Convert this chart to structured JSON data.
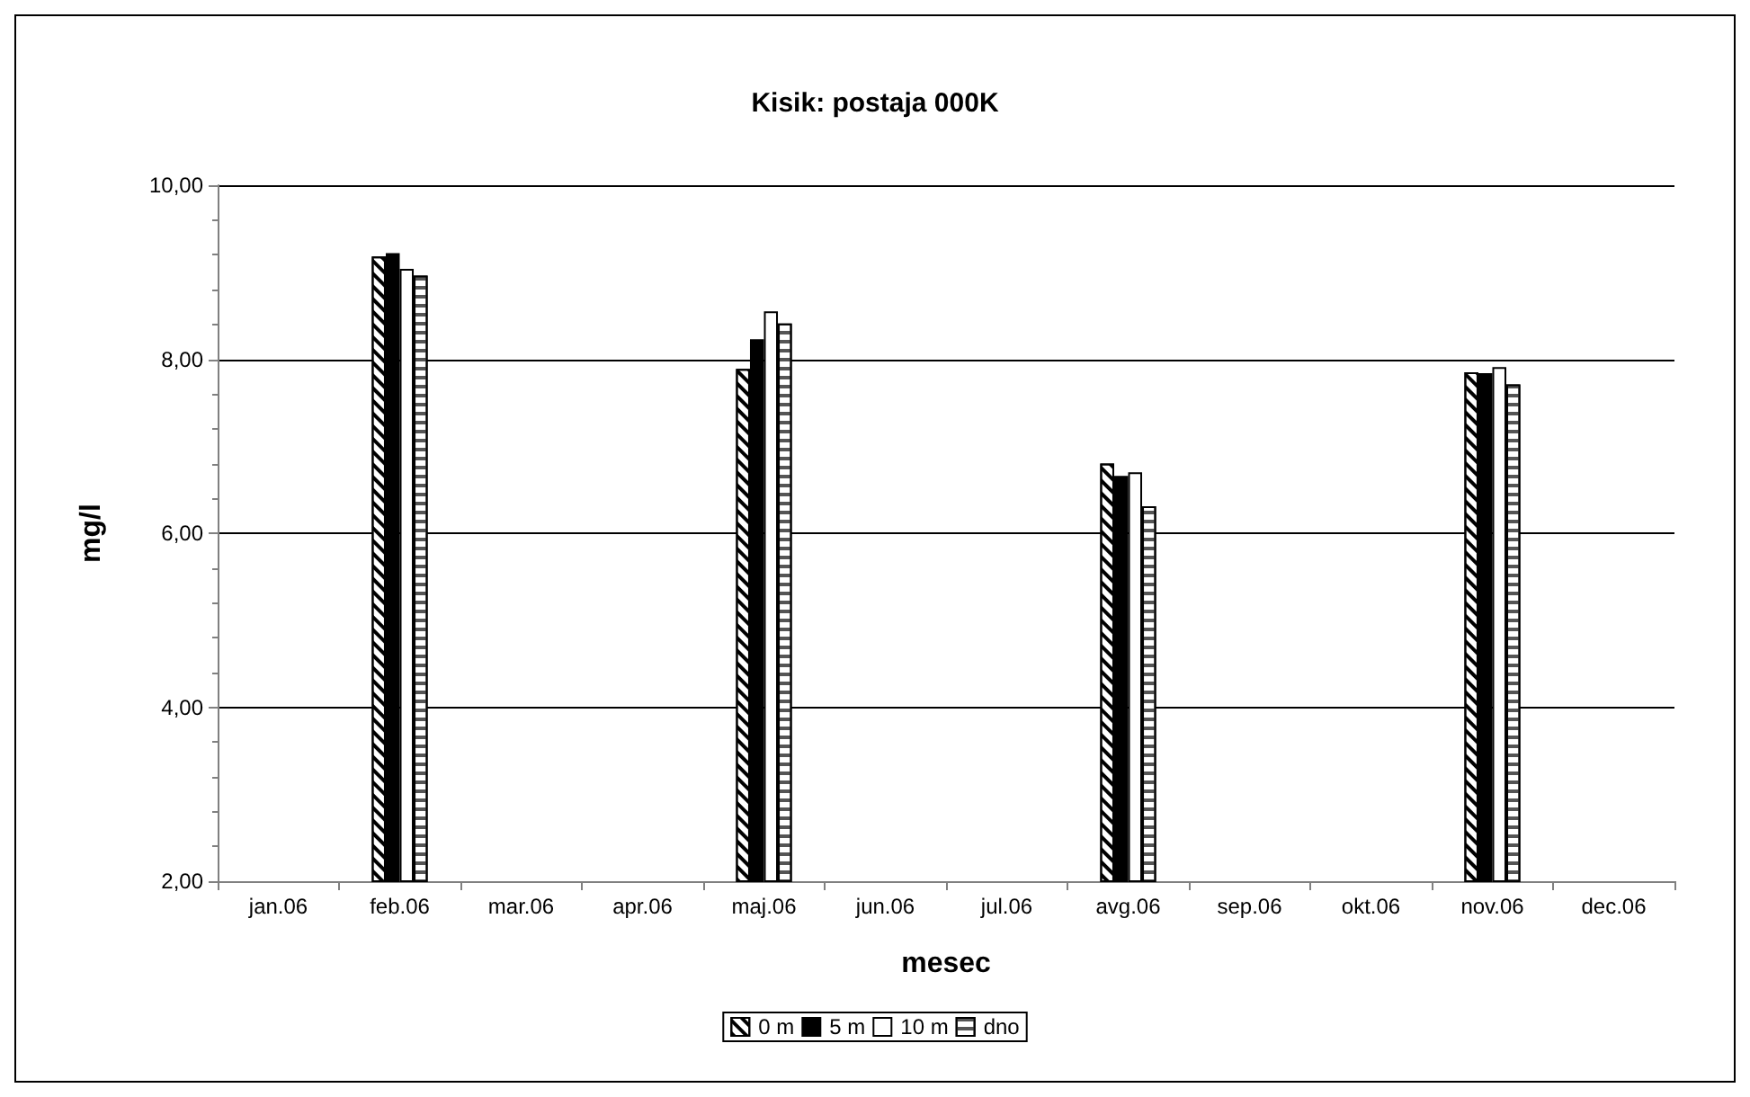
{
  "chart_data": {
    "type": "bar",
    "title": "Kisik: postaja 000K",
    "xlabel": "mesec",
    "ylabel": "mg/l",
    "categories": [
      "jan.06",
      "feb.06",
      "mar.06",
      "apr.06",
      "maj.06",
      "jun.06",
      "jul.06",
      "avg.06",
      "sep.06",
      "okt.06",
      "nov.06",
      "dec.06"
    ],
    "series": [
      {
        "name": "0 m",
        "color": "#ffffff",
        "values": [
          null,
          9.18,
          null,
          null,
          7.89,
          null,
          null,
          6.8,
          null,
          null,
          7.85,
          null
        ]
      },
      {
        "name": "5 m",
        "color": "#000000",
        "values": [
          null,
          9.22,
          null,
          null,
          8.23,
          null,
          null,
          6.66,
          null,
          null,
          7.84,
          null
        ]
      },
      {
        "name": "10 m",
        "color": "#ffffff",
        "values": [
          null,
          9.04,
          null,
          null,
          8.55,
          null,
          null,
          6.7,
          null,
          null,
          7.91,
          null
        ]
      },
      {
        "name": "dno",
        "color": "#ffffff",
        "values": [
          null,
          8.96,
          null,
          null,
          8.41,
          null,
          null,
          6.31,
          null,
          null,
          7.71,
          null
        ]
      }
    ],
    "ylim": [
      2,
      10
    ],
    "yticks": [
      {
        "value": 2,
        "label": "2,00"
      },
      {
        "value": 4,
        "label": "4,00"
      },
      {
        "value": 6,
        "label": "6,00"
      },
      {
        "value": 8,
        "label": "8,00"
      },
      {
        "value": 10,
        "label": "10,00"
      }
    ],
    "grid": "y",
    "legend": "bottom"
  }
}
